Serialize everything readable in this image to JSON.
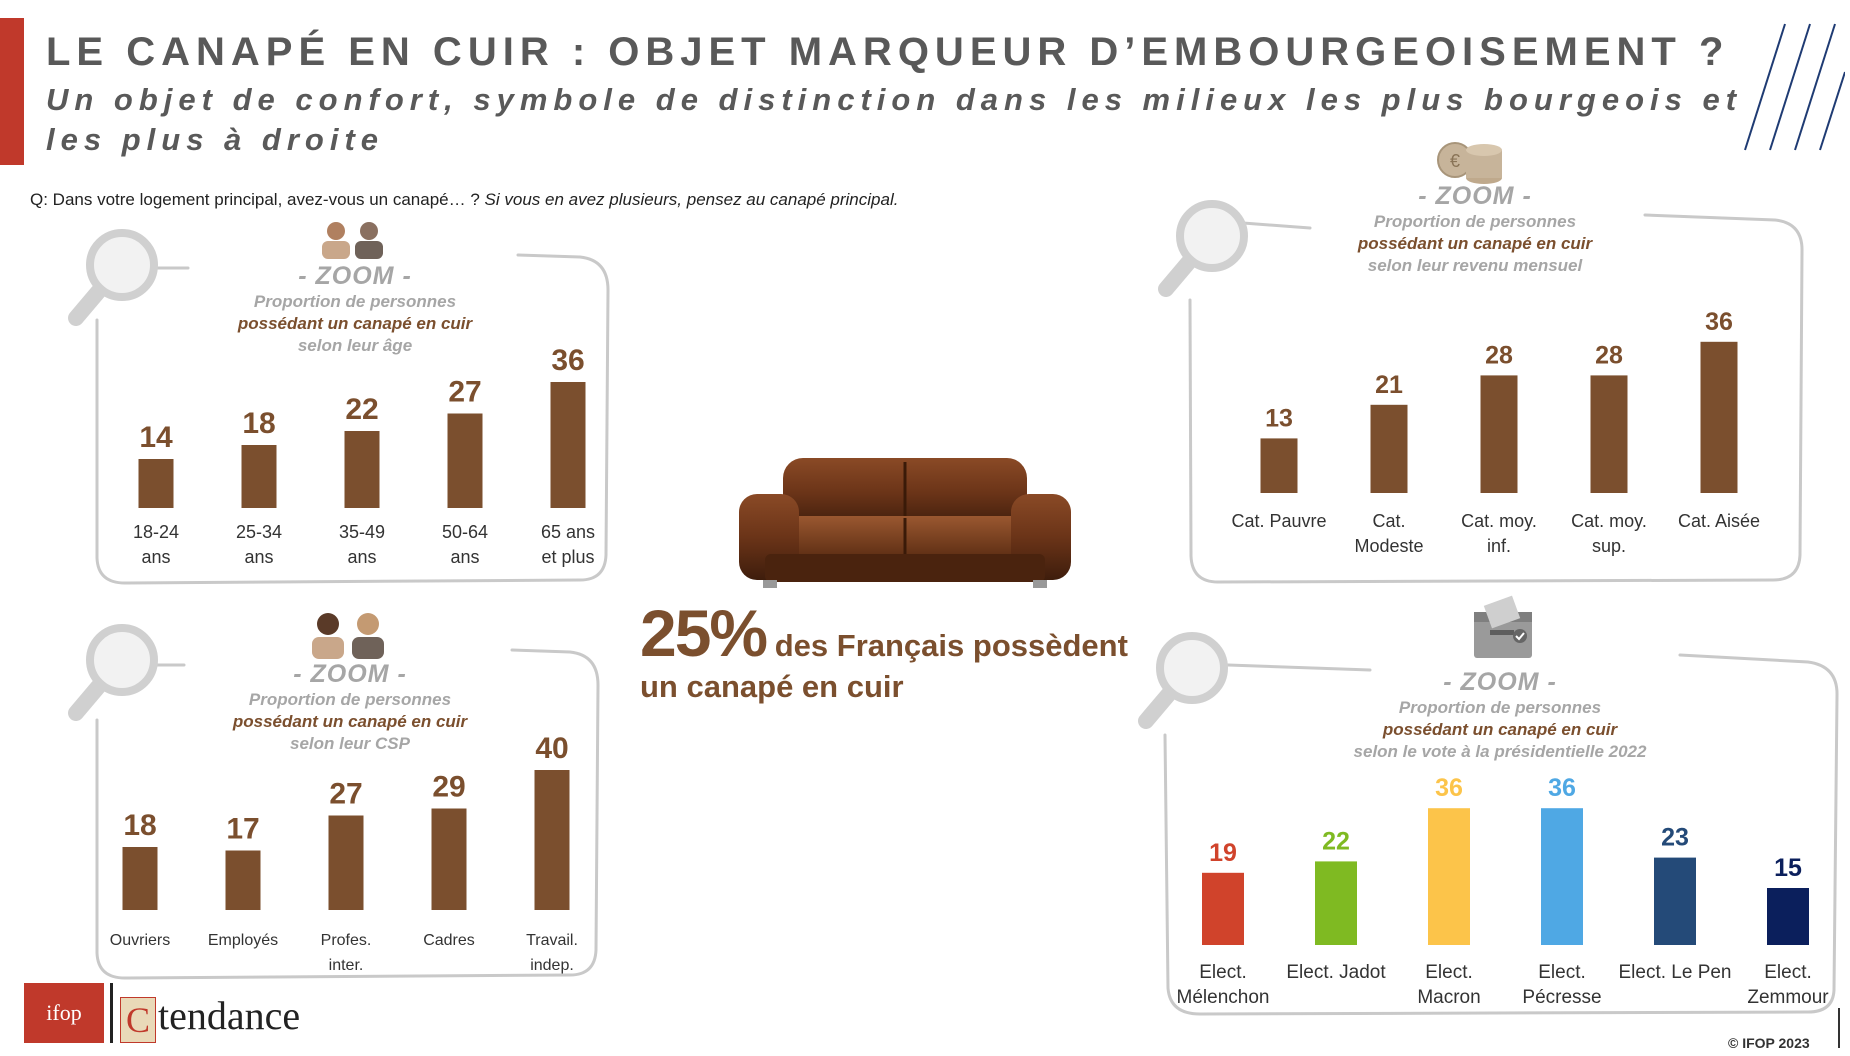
{
  "title": "LE CANAPÉ EN CUIR : OBJET MARQUEUR D’EMBOURGEOISEMENT ?",
  "subtitle": "Un objet de confort, symbole de distinction dans les milieux les plus bourgeois et les plus à droite",
  "question": {
    "main": "Q: Dans votre logement principal, avez-vous un canapé… ?",
    "note": "Si vous en avez plusieurs, pensez au canapé principal."
  },
  "headline": {
    "pct": "25%",
    "line1": " des Français possèdent",
    "line2": "un canapé en cuir"
  },
  "logos": {
    "ifop": "ifop",
    "c": "C",
    "tendance": "tendance"
  },
  "copyright": "© IFOP 2023",
  "colors": {
    "brown": "#7b4f2e",
    "grey": "#a6a6a6",
    "red": "#c0392b"
  },
  "icons": [
    "magnifier-icon",
    "people-icon",
    "coins-icon",
    "ballot-box-icon",
    "sofa-image"
  ],
  "chart_data": [
    {
      "id": "age",
      "type": "bar",
      "zoom": "- ZOOM -",
      "l1": "Proportion de personnes",
      "l2": "possédant un canapé en cuir",
      "l3": "selon leur âge",
      "categories": [
        [
          "18-24",
          "ans"
        ],
        [
          "25-34",
          "ans"
        ],
        [
          "35-49",
          "ans"
        ],
        [
          "50-64",
          "ans"
        ],
        [
          "65 ans",
          "et plus"
        ]
      ],
      "values": [
        14,
        18,
        22,
        27,
        36
      ],
      "colors": [
        "#7b4f2e",
        "#7b4f2e",
        "#7b4f2e",
        "#7b4f2e",
        "#7b4f2e"
      ],
      "label_colors": [
        "#7b4f2e",
        "#7b4f2e",
        "#7b4f2e",
        "#7b4f2e",
        "#7b4f2e"
      ]
    },
    {
      "id": "csp",
      "type": "bar",
      "zoom": "- ZOOM -",
      "l1": "Proportion de personnes",
      "l2": "possédant un canapé en cuir",
      "l3": "selon leur CSP",
      "categories": [
        [
          "Ouvriers"
        ],
        [
          "Employés"
        ],
        [
          "Profes.",
          "inter."
        ],
        [
          "Cadres"
        ],
        [
          "Travail.",
          "indep."
        ]
      ],
      "values": [
        18,
        17,
        27,
        29,
        40
      ],
      "colors": [
        "#7b4f2e",
        "#7b4f2e",
        "#7b4f2e",
        "#7b4f2e",
        "#7b4f2e"
      ],
      "label_colors": [
        "#7b4f2e",
        "#7b4f2e",
        "#7b4f2e",
        "#7b4f2e",
        "#7b4f2e"
      ]
    },
    {
      "id": "revenu",
      "type": "bar",
      "zoom": "- ZOOM -",
      "l1": "Proportion de personnes",
      "l2": "possédant un canapé en cuir",
      "l3": "selon leur revenu mensuel",
      "categories": [
        [
          "Cat. Pauvre"
        ],
        [
          "Cat.",
          "Modeste"
        ],
        [
          "Cat. moy.",
          "inf."
        ],
        [
          "Cat. moy.",
          "sup."
        ],
        [
          "Cat. Aisée"
        ]
      ],
      "values": [
        13,
        21,
        28,
        28,
        36
      ],
      "colors": [
        "#7b4f2e",
        "#7b4f2e",
        "#7b4f2e",
        "#7b4f2e",
        "#7b4f2e"
      ],
      "label_colors": [
        "#7b4f2e",
        "#7b4f2e",
        "#7b4f2e",
        "#7b4f2e",
        "#7b4f2e"
      ]
    },
    {
      "id": "vote",
      "type": "bar",
      "zoom": "- ZOOM -",
      "l1": "Proportion de personnes",
      "l2": "possédant un canapé en cuir",
      "l3": "selon le vote à la présidentielle 2022",
      "categories": [
        [
          "Elect.",
          "Mélenchon"
        ],
        [
          "Elect. Jadot"
        ],
        [
          "Elect.",
          "Macron"
        ],
        [
          "Elect.",
          "Pécresse"
        ],
        [
          "Elect. Le Pen"
        ],
        [
          "Elect.",
          "Zemmour"
        ]
      ],
      "values": [
        19,
        22,
        36,
        36,
        23,
        15
      ],
      "colors": [
        "#d0432b",
        "#7fba22",
        "#fcc44a",
        "#4fa8e4",
        "#244a78",
        "#0b1f5c"
      ],
      "label_colors": [
        "#d0432b",
        "#7fba22",
        "#fcc44a",
        "#4fa8e4",
        "#244a78",
        "#0b1f5c"
      ]
    }
  ]
}
